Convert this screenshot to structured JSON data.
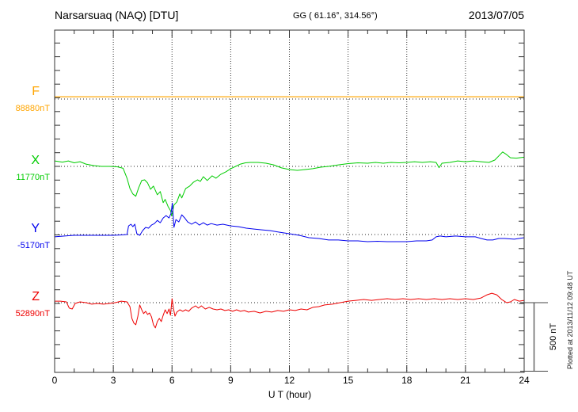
{
  "header": {
    "station_title": "Narsarsuaq (NAQ)  [DTU]",
    "gg_coords": "GG ( 61.16°, 314.56°)",
    "date": "2013/07/05"
  },
  "x_axis": {
    "label": "U T (hour)",
    "tick_labels": [
      0,
      3,
      6,
      9,
      12,
      15,
      18,
      21,
      24
    ],
    "range": [
      0,
      24
    ],
    "minor_step_hours": 1
  },
  "scale_bar": {
    "label": "500 nT",
    "value_nT": 500
  },
  "footer_note": "Plotted at 2013/11/12 09:48 UT",
  "colors": {
    "frame": "#333333",
    "grid": "#333333",
    "f_label": "#FFA500",
    "f_line": "#FFC966",
    "x_color": "#00CC00",
    "y_color": "#0000EE",
    "z_color": "#EE0000"
  },
  "chart_data": {
    "type": "line",
    "title": "Narsarsuaq (NAQ) magnetogram 2013/07/05",
    "xlabel": "U T (hour)",
    "x_range": [
      0,
      24
    ],
    "grid": "dotted baselines per component, vertical dotted lines every 3 hours",
    "y_scale": {
      "minor_tick_nT": 100,
      "scale_bar_nT": 500
    },
    "series": [
      {
        "name": "F",
        "label": "F",
        "base_label": "88880nT",
        "base_value": 88880,
        "color": "#FFA500",
        "line_color": "#FFC966",
        "line_width": 2,
        "points": [
          [
            0,
            17
          ],
          [
            24,
            17
          ]
        ]
      },
      {
        "name": "X",
        "label": "X",
        "base_label": "11770nT",
        "base_value": 11770,
        "color": "#00CC00",
        "line_color": "#00CC00",
        "line_width": 1,
        "points": [
          [
            0,
            40
          ],
          [
            0.4,
            31
          ],
          [
            0.7,
            40
          ],
          [
            1,
            26
          ],
          [
            1.3,
            34
          ],
          [
            1.6,
            17
          ],
          [
            2,
            6
          ],
          [
            2.4,
            0
          ],
          [
            2.8,
            0
          ],
          [
            3.2,
            -3
          ],
          [
            3.5,
            -14
          ],
          [
            3.7,
            -86
          ],
          [
            3.85,
            -161
          ],
          [
            4,
            -201
          ],
          [
            4.15,
            -218
          ],
          [
            4.3,
            -155
          ],
          [
            4.45,
            -103
          ],
          [
            4.6,
            -98
          ],
          [
            4.75,
            -121
          ],
          [
            4.9,
            -167
          ],
          [
            5.05,
            -144
          ],
          [
            5.25,
            -207
          ],
          [
            5.4,
            -184
          ],
          [
            5.55,
            -264
          ],
          [
            5.65,
            -241
          ],
          [
            5.8,
            -293
          ],
          [
            5.92,
            -322
          ],
          [
            5.98,
            -362
          ],
          [
            6.1,
            -282
          ],
          [
            6.25,
            -259
          ],
          [
            6.4,
            -201
          ],
          [
            6.5,
            -230
          ],
          [
            6.7,
            -161
          ],
          [
            6.9,
            -144
          ],
          [
            7.1,
            -115
          ],
          [
            7.3,
            -98
          ],
          [
            7.45,
            -109
          ],
          [
            7.6,
            -75
          ],
          [
            7.8,
            -103
          ],
          [
            8.05,
            -69
          ],
          [
            8.25,
            -86
          ],
          [
            8.5,
            -57
          ],
          [
            8.75,
            -40
          ],
          [
            9,
            -17
          ],
          [
            9.25,
            0
          ],
          [
            9.5,
            17
          ],
          [
            9.75,
            26
          ],
          [
            10,
            29
          ],
          [
            10.4,
            29
          ],
          [
            10.8,
            23
          ],
          [
            11.2,
            11
          ],
          [
            11.6,
            -11
          ],
          [
            12,
            -23
          ],
          [
            12.4,
            -29
          ],
          [
            12.8,
            -23
          ],
          [
            13.2,
            -17
          ],
          [
            13.6,
            -6
          ],
          [
            14,
            0
          ],
          [
            14.5,
            11
          ],
          [
            15,
            20
          ],
          [
            15.5,
            26
          ],
          [
            16,
            23
          ],
          [
            16.4,
            29
          ],
          [
            16.8,
            23
          ],
          [
            17.2,
            29
          ],
          [
            17.6,
            26
          ],
          [
            18,
            29
          ],
          [
            18.4,
            34
          ],
          [
            18.8,
            29
          ],
          [
            19.2,
            34
          ],
          [
            19.5,
            29
          ],
          [
            19.65,
            -9
          ],
          [
            19.8,
            23
          ],
          [
            20.2,
            29
          ],
          [
            20.6,
            40
          ],
          [
            21,
            34
          ],
          [
            21.4,
            40
          ],
          [
            21.8,
            34
          ],
          [
            22.2,
            29
          ],
          [
            22.5,
            46
          ],
          [
            22.9,
            105
          ],
          [
            23.1,
            86
          ],
          [
            23.3,
            63
          ],
          [
            23.6,
            60
          ],
          [
            24,
            67
          ]
        ]
      },
      {
        "name": "Y",
        "label": "Y",
        "base_label": "-5170nT",
        "base_value": -5170,
        "color": "#0000EE",
        "line_color": "#0000EE",
        "line_width": 1,
        "points": [
          [
            0,
            -17
          ],
          [
            0.5,
            -11
          ],
          [
            1,
            -6
          ],
          [
            1.5,
            -6
          ],
          [
            2,
            -6
          ],
          [
            2.5,
            -6
          ],
          [
            3,
            -6
          ],
          [
            3.4,
            -3
          ],
          [
            3.7,
            0
          ],
          [
            3.78,
            63
          ],
          [
            3.9,
            75
          ],
          [
            4,
            57
          ],
          [
            4.1,
            75
          ],
          [
            4.2,
            6
          ],
          [
            4.35,
            -6
          ],
          [
            4.5,
            29
          ],
          [
            4.65,
            52
          ],
          [
            4.8,
            46
          ],
          [
            4.95,
            69
          ],
          [
            5.1,
            80
          ],
          [
            5.25,
            103
          ],
          [
            5.4,
            86
          ],
          [
            5.55,
            121
          ],
          [
            5.7,
            138
          ],
          [
            5.85,
            121
          ],
          [
            5.95,
            155
          ],
          [
            6.02,
            230
          ],
          [
            6.1,
            52
          ],
          [
            6.2,
            109
          ],
          [
            6.35,
            92
          ],
          [
            6.5,
            144
          ],
          [
            6.65,
            121
          ],
          [
            6.8,
            92
          ],
          [
            7,
            75
          ],
          [
            7.2,
            92
          ],
          [
            7.4,
            69
          ],
          [
            7.6,
            86
          ],
          [
            7.8,
            69
          ],
          [
            8,
            80
          ],
          [
            8.3,
            69
          ],
          [
            8.6,
            75
          ],
          [
            9,
            63
          ],
          [
            9.4,
            57
          ],
          [
            9.8,
            46
          ],
          [
            10.2,
            40
          ],
          [
            10.6,
            34
          ],
          [
            11,
            29
          ],
          [
            11.5,
            17
          ],
          [
            12,
            6
          ],
          [
            12.5,
            -6
          ],
          [
            13,
            -23
          ],
          [
            13.5,
            -29
          ],
          [
            14,
            -40
          ],
          [
            14.5,
            -40
          ],
          [
            15,
            -46
          ],
          [
            15.5,
            -46
          ],
          [
            16,
            -52
          ],
          [
            16.5,
            -49
          ],
          [
            17,
            -52
          ],
          [
            17.5,
            -52
          ],
          [
            18,
            -52
          ],
          [
            18.5,
            -46
          ],
          [
            19,
            -46
          ],
          [
            19.3,
            -40
          ],
          [
            19.5,
            -17
          ],
          [
            19.7,
            -11
          ],
          [
            20,
            -17
          ],
          [
            20.5,
            -11
          ],
          [
            21,
            -17
          ],
          [
            21.5,
            -17
          ],
          [
            21.8,
            -29
          ],
          [
            22.1,
            -40
          ],
          [
            22.4,
            -40
          ],
          [
            22.7,
            -29
          ],
          [
            23,
            -29
          ],
          [
            23.5,
            -34
          ],
          [
            24,
            -23
          ]
        ]
      },
      {
        "name": "Z",
        "label": "Z",
        "base_label": "52890nT",
        "base_value": 52890,
        "color": "#EE0000",
        "line_color": "#EE0000",
        "line_width": 1,
        "points": [
          [
            0,
            11
          ],
          [
            0.3,
            11
          ],
          [
            0.6,
            6
          ],
          [
            0.75,
            -40
          ],
          [
            0.9,
            -46
          ],
          [
            1.05,
            -6
          ],
          [
            1.3,
            6
          ],
          [
            1.6,
            0
          ],
          [
            1.9,
            -11
          ],
          [
            2.2,
            -6
          ],
          [
            2.5,
            -11
          ],
          [
            2.8,
            -6
          ],
          [
            3.1,
            0
          ],
          [
            3.4,
            11
          ],
          [
            3.7,
            6
          ],
          [
            3.85,
            -29
          ],
          [
            3.95,
            -115
          ],
          [
            4.05,
            -149
          ],
          [
            4.15,
            -161
          ],
          [
            4.25,
            -103
          ],
          [
            4.35,
            -17
          ],
          [
            4.45,
            -52
          ],
          [
            4.55,
            -80
          ],
          [
            4.65,
            -63
          ],
          [
            4.75,
            -86
          ],
          [
            4.85,
            -75
          ],
          [
            4.95,
            -103
          ],
          [
            5.05,
            -161
          ],
          [
            5.15,
            -184
          ],
          [
            5.25,
            -138
          ],
          [
            5.35,
            -115
          ],
          [
            5.45,
            -138
          ],
          [
            5.55,
            -92
          ],
          [
            5.65,
            -52
          ],
          [
            5.75,
            -80
          ],
          [
            5.85,
            -46
          ],
          [
            5.92,
            -92
          ],
          [
            6,
            29
          ],
          [
            6.08,
            -46
          ],
          [
            6.15,
            -98
          ],
          [
            6.25,
            -69
          ],
          [
            6.4,
            -52
          ],
          [
            6.55,
            -63
          ],
          [
            6.7,
            -52
          ],
          [
            6.85,
            -63
          ],
          [
            7,
            -40
          ],
          [
            7.2,
            -23
          ],
          [
            7.35,
            -40
          ],
          [
            7.5,
            -23
          ],
          [
            7.7,
            -46
          ],
          [
            7.9,
            -34
          ],
          [
            8.1,
            -46
          ],
          [
            8.3,
            -52
          ],
          [
            8.5,
            -46
          ],
          [
            8.7,
            -57
          ],
          [
            8.9,
            -52
          ],
          [
            9.1,
            -63
          ],
          [
            9.3,
            -52
          ],
          [
            9.5,
            -63
          ],
          [
            9.7,
            -57
          ],
          [
            9.9,
            -69
          ],
          [
            10.2,
            -63
          ],
          [
            10.5,
            -75
          ],
          [
            10.8,
            -63
          ],
          [
            11.1,
            -69
          ],
          [
            11.4,
            -57
          ],
          [
            11.7,
            -63
          ],
          [
            12,
            -52
          ],
          [
            12.3,
            -57
          ],
          [
            12.6,
            -46
          ],
          [
            12.9,
            -52
          ],
          [
            13.2,
            -34
          ],
          [
            13.5,
            -29
          ],
          [
            13.8,
            -17
          ],
          [
            14.2,
            -11
          ],
          [
            14.6,
            0
          ],
          [
            15,
            11
          ],
          [
            15.4,
            17
          ],
          [
            15.8,
            23
          ],
          [
            16.2,
            17
          ],
          [
            16.6,
            23
          ],
          [
            17,
            29
          ],
          [
            17.4,
            23
          ],
          [
            17.8,
            29
          ],
          [
            18.2,
            23
          ],
          [
            18.6,
            29
          ],
          [
            19,
            23
          ],
          [
            19.4,
            29
          ],
          [
            19.8,
            23
          ],
          [
            20.2,
            29
          ],
          [
            20.6,
            23
          ],
          [
            21,
            29
          ],
          [
            21.4,
            23
          ],
          [
            21.8,
            34
          ],
          [
            22.1,
            57
          ],
          [
            22.35,
            69
          ],
          [
            22.6,
            57
          ],
          [
            22.85,
            23
          ],
          [
            23.1,
            0
          ],
          [
            23.3,
            6
          ],
          [
            23.5,
            23
          ],
          [
            23.75,
            11
          ],
          [
            24,
            17
          ]
        ]
      }
    ]
  }
}
